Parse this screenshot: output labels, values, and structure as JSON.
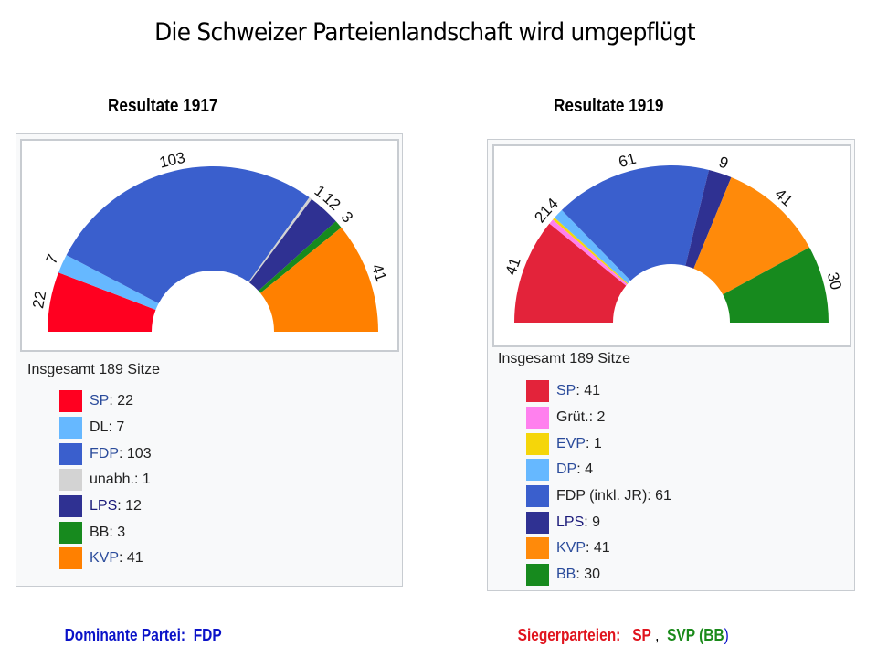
{
  "slide": {
    "title": "Die Schweizer Parteienlandschaft wird umgepflügt"
  },
  "chart_data": [
    {
      "type": "pie",
      "variant": "semicircle-parliament",
      "title": "Resultate 1917",
      "total_label": "Insgesamt 189 Sitze",
      "total": 189,
      "slices": [
        {
          "party": "SP",
          "value": 22,
          "label": "22",
          "color": "#ff0020",
          "legend": "SP",
          "legend_value": ": 22",
          "linked": true
        },
        {
          "party": "DL",
          "value": 7,
          "label": "7",
          "color": "#66b8ff",
          "legend": "DL",
          "legend_value": ": 7",
          "linked": false
        },
        {
          "party": "FDP",
          "value": 103,
          "label": "103",
          "color": "#3a5fcd",
          "legend": "FDP",
          "legend_value": ": 103",
          "linked": true
        },
        {
          "party": "unabh.",
          "value": 1,
          "label": "1",
          "color": "#d3d3d3",
          "legend": "unabh.",
          "legend_value": ": 1",
          "linked": false
        },
        {
          "party": "LPS",
          "value": 12,
          "label": "12",
          "color": "#2f3192",
          "legend": "LPS",
          "legend_value": ": 12",
          "linked": "dark"
        },
        {
          "party": "BB",
          "value": 3,
          "label": "3",
          "color": "#178a1e",
          "legend": "BB",
          "legend_value": ": 3",
          "linked": false
        },
        {
          "party": "KVP",
          "value": 41,
          "label": "41",
          "color": "#ff8000",
          "legend": "KVP",
          "legend_value": ": 41",
          "linked": true
        }
      ]
    },
    {
      "type": "pie",
      "variant": "semicircle-parliament",
      "title": "Resultate 1919",
      "total_label": "Insgesamt 189 Sitze",
      "total": 189,
      "slices": [
        {
          "party": "SP",
          "value": 41,
          "label": "41",
          "color": "#e3233a",
          "legend": "SP",
          "legend_value": ": 41",
          "linked": true
        },
        {
          "party": "Grüt.",
          "value": 2,
          "label": "2",
          "color": "#ff80ee",
          "legend": "Grüt.",
          "legend_value": ": 2",
          "linked": false
        },
        {
          "party": "EVP",
          "value": 1,
          "label": "1",
          "color": "#f5d60a",
          "legend": "EVP",
          "legend_value": ": 1",
          "linked": true
        },
        {
          "party": "DP",
          "value": 4,
          "label": "4",
          "color": "#66b8ff",
          "legend": "DP",
          "legend_value": ": 4",
          "linked": true
        },
        {
          "party": "FDP (inkl. JR)",
          "value": 61,
          "label": "61",
          "color": "#3a5fcd",
          "legend": "FDP (inkl. JR)",
          "legend_value": ": 61",
          "linked": false
        },
        {
          "party": "LPS",
          "value": 9,
          "label": "9",
          "color": "#2f3192",
          "legend": "LPS",
          "legend_value": ": 9",
          "linked": "dark"
        },
        {
          "party": "KVP",
          "value": 41,
          "label": "41",
          "color": "#ff8a0a",
          "legend": "KVP",
          "legend_value": ": 41",
          "linked": true
        },
        {
          "party": "BB",
          "value": 30,
          "label": "30",
          "color": "#178a1e",
          "legend": "BB",
          "legend_value": ": 30",
          "linked": true
        }
      ]
    }
  ],
  "footer": {
    "left": {
      "label": "Dominante Partei:",
      "value": "FDP",
      "color": "#0a12c8"
    },
    "right": {
      "label": "Siegerparteien:",
      "first": "SP",
      "separator": " ,",
      "second": "SVP (BB",
      "close": ")",
      "label_color": "#e0141e",
      "second_color": "#1a8a1a",
      "close_color": "#0a12c8"
    }
  }
}
